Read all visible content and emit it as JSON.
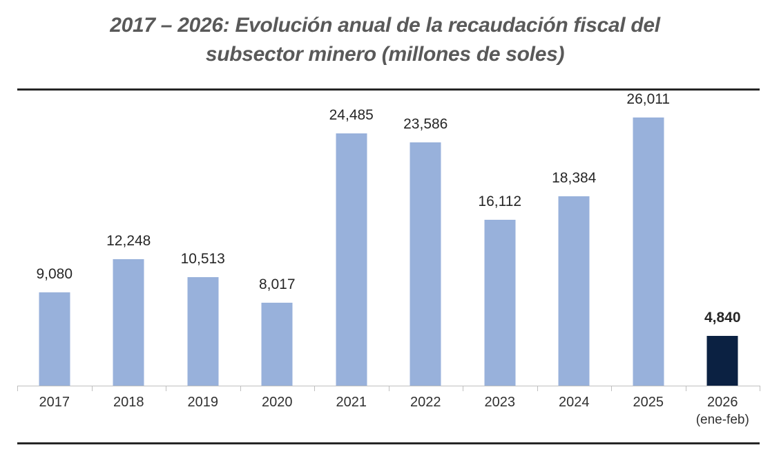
{
  "header": {
    "title": "2017 – 2026: Evolución anual de la recaudación fiscal del\nsubsector minero (millones de soles)"
  },
  "colors": {
    "bar_default": "#98B1DB",
    "bar_highlight": "#0B2142",
    "title_text": "#595959",
    "value_label_text": "#262626",
    "axis_line": "#BFBFBF",
    "rule_line": "#262626"
  },
  "chart_data": {
    "type": "bar",
    "title": "2017 – 2026: Evolución anual de la recaudación fiscal del subsector minero (millones de soles)",
    "xlabel": "",
    "ylabel": "",
    "categories": [
      "2017",
      "2018",
      "2019",
      "2020",
      "2021",
      "2022",
      "2023",
      "2024",
      "2025",
      "2026"
    ],
    "category_sublabels": [
      "",
      "",
      "",
      "",
      "",
      "",
      "",
      "",
      "",
      "(ene-feb)"
    ],
    "values": [
      9080,
      12248,
      10513,
      8017,
      24485,
      23586,
      16112,
      18384,
      26011,
      4840
    ],
    "value_labels": [
      "9,080",
      "12,248",
      "10,513",
      "8,017",
      "24,485",
      "23,586",
      "16,112",
      "18,384",
      "26,011",
      "4,840"
    ],
    "highlight_index": 9,
    "ylim": [
      0,
      28700
    ],
    "grid": false,
    "legend": false,
    "value_labels_shown": true
  }
}
